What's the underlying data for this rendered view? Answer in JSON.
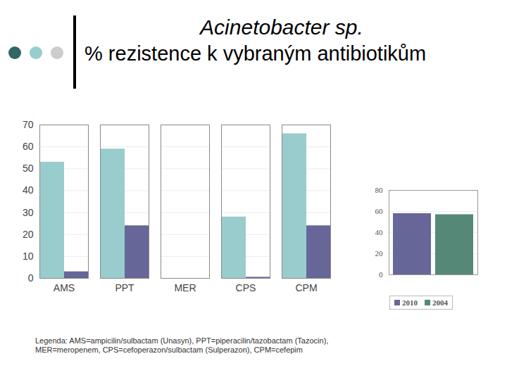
{
  "chart_data": [
    {
      "type": "bar",
      "title": "Acinetobacter sp.",
      "subtitle": "% rezistence k vybraným antibiotikům",
      "annotations": [
        "Legenda: AMS=ampicilin/sulbactam (Unasyn), PPT=piperacilin/tazobactam (Tazocin), MER=meropenem, CPS=cefoperazon/sulbactam (Sulperazon), CPM=cefepim"
      ],
      "categories": [
        "AMS",
        "PPT",
        "MER",
        "CPS",
        "CPM"
      ],
      "series": [
        {
          "name": "2004",
          "color": "#99cccc",
          "values": [
            53,
            59,
            0,
            28,
            66
          ]
        },
        {
          "name": "2010",
          "color": "#666699",
          "values": [
            3,
            24,
            0,
            0.5,
            24
          ]
        }
      ],
      "ylim": [
        0,
        70
      ],
      "yticks": [
        0,
        10,
        20,
        30,
        40,
        50,
        60,
        70
      ],
      "grid": true
    },
    {
      "type": "bar",
      "categories": [
        null
      ],
      "series": [
        {
          "name": "2010",
          "color": "#666699",
          "values": [
            58
          ]
        },
        {
          "name": "2004",
          "color": "#558877",
          "values": [
            57
          ]
        }
      ],
      "ylim": [
        0,
        80
      ],
      "yticks": [
        0,
        20,
        40,
        60,
        80
      ],
      "grid": true,
      "legend": "bottom"
    }
  ]
}
